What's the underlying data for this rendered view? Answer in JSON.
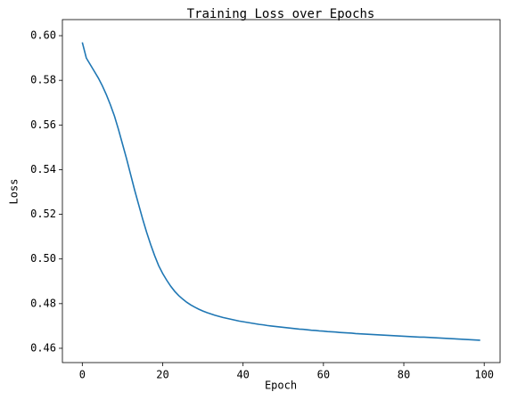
{
  "chart_data": {
    "type": "line",
    "title": "Training Loss over Epochs",
    "x_label": "Epoch",
    "y_label": "Loss",
    "x": [
      0,
      1,
      2,
      3,
      4,
      5,
      6,
      7,
      8,
      9,
      10,
      11,
      12,
      13,
      14,
      15,
      16,
      17,
      18,
      19,
      20,
      21,
      22,
      23,
      24,
      25,
      26,
      27,
      28,
      29,
      30,
      31,
      32,
      33,
      34,
      35,
      36,
      37,
      38,
      39,
      40,
      41,
      42,
      43,
      44,
      45,
      46,
      47,
      48,
      49,
      50,
      51,
      52,
      53,
      54,
      55,
      56,
      57,
      58,
      59,
      60,
      61,
      62,
      63,
      64,
      65,
      66,
      67,
      68,
      69,
      70,
      71,
      72,
      73,
      74,
      75,
      76,
      77,
      78,
      79,
      80,
      81,
      82,
      83,
      84,
      85,
      86,
      87,
      88,
      89,
      90,
      91,
      92,
      93,
      94,
      95,
      96,
      97,
      98,
      99
    ],
    "series": [
      {
        "color": "#1f77b4",
        "values": [
          0.597,
          0.59,
          0.587,
          0.584,
          0.581,
          0.5775,
          0.5735,
          0.569,
          0.564,
          0.558,
          0.5515,
          0.545,
          0.538,
          0.531,
          0.5245,
          0.518,
          0.512,
          0.5065,
          0.5015,
          0.497,
          0.4935,
          0.4905,
          0.4878,
          0.4855,
          0.4836,
          0.482,
          0.4806,
          0.4794,
          0.4784,
          0.4775,
          0.4767,
          0.476,
          0.4754,
          0.4748,
          0.4743,
          0.4738,
          0.4734,
          0.473,
          0.4726,
          0.4722,
          0.4719,
          0.4716,
          0.4713,
          0.471,
          0.4707,
          0.4705,
          0.4702,
          0.47,
          0.4698,
          0.4696,
          0.4694,
          0.4692,
          0.469,
          0.4688,
          0.4686,
          0.4685,
          0.4683,
          0.4681,
          0.468,
          0.4678,
          0.4677,
          0.4675,
          0.4674,
          0.4673,
          0.4671,
          0.467,
          0.4669,
          0.4668,
          0.4666,
          0.4665,
          0.4664,
          0.4663,
          0.4662,
          0.4661,
          0.466,
          0.4659,
          0.4658,
          0.4657,
          0.4656,
          0.4655,
          0.4654,
          0.4653,
          0.4652,
          0.4651,
          0.465,
          0.465,
          0.4649,
          0.4648,
          0.4647,
          0.4646,
          0.4645,
          0.4644,
          0.4643,
          0.4642,
          0.4641,
          0.464,
          0.4639,
          0.4638,
          0.4637,
          0.4636
        ]
      }
    ],
    "xlim": [
      -4.95,
      103.95
    ],
    "ylim": [
      0.4536,
      0.6072
    ],
    "xticks": [
      0,
      20,
      40,
      60,
      80,
      100
    ],
    "yticks": [
      0.46,
      0.48,
      {
        "value": 0.5,
        "label": "0.50"
      },
      0.52,
      0.54,
      0.56,
      0.58,
      {
        "value": 0.6,
        "label": "0.60"
      }
    ],
    "grid": false
  }
}
